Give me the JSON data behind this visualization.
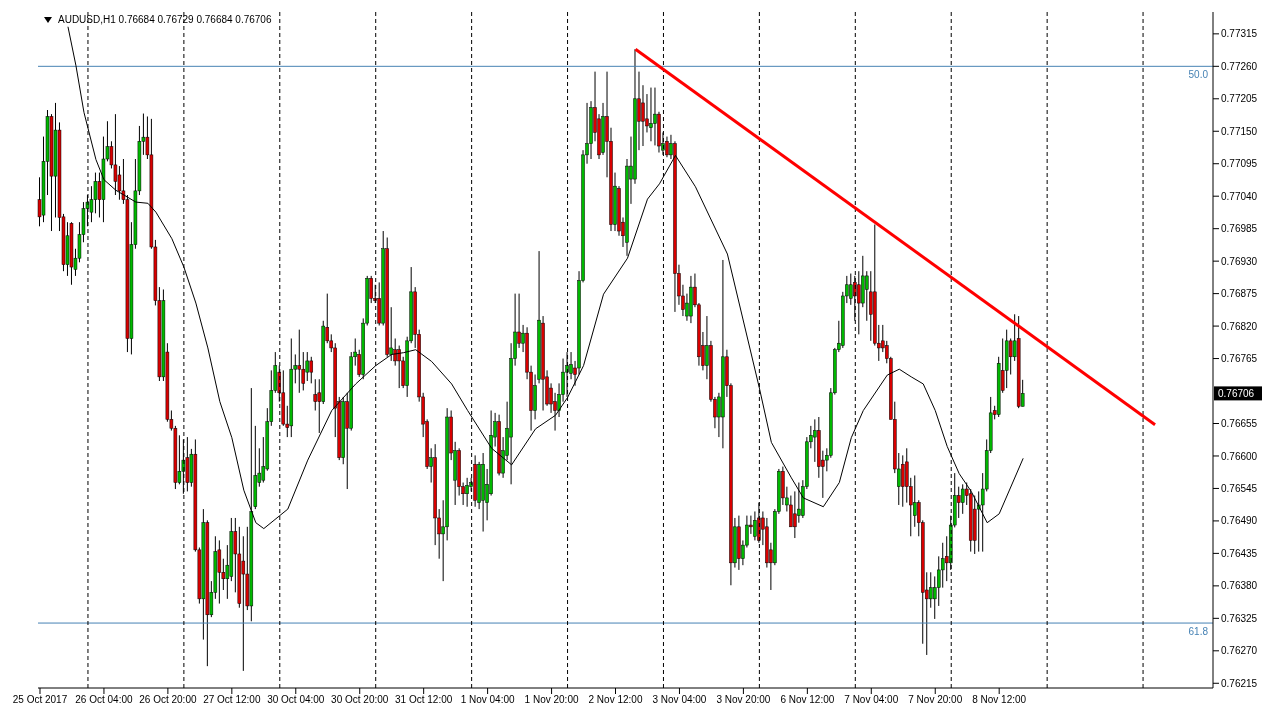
{
  "chart_data": {
    "type": "candlestick",
    "title": "AUDUSD,H1 0.76684 0.76729 0.76684 0.76706",
    "categories": [
      "25 Oct 2017",
      null,
      null,
      null,
      null,
      null,
      null,
      null,
      null,
      null,
      null,
      null,
      null,
      null,
      null,
      null,
      "26 Oct 04:00",
      null,
      null,
      null,
      null,
      null,
      null,
      null,
      null,
      null,
      null,
      null,
      null,
      null,
      null,
      null,
      "26 Oct 20:00",
      null,
      null,
      null,
      null,
      null,
      null,
      null,
      null,
      null,
      null,
      null,
      null,
      null,
      null,
      null,
      "27 Oct 12:00",
      null,
      null,
      null,
      null,
      null,
      null,
      null,
      null,
      null,
      null,
      null,
      null,
      null,
      null,
      null,
      "30 Oct 04:00",
      null,
      null,
      null,
      null,
      null,
      null,
      null,
      null,
      null,
      null,
      null,
      null,
      null,
      null,
      null,
      "30 Oct 20:00",
      null,
      null,
      null,
      null,
      null,
      null,
      null,
      null,
      null,
      null,
      null,
      null,
      null,
      null,
      null,
      "31 Oct 12:00",
      null,
      null,
      null,
      null,
      null,
      null,
      null,
      null,
      null,
      null,
      null,
      null,
      null,
      null,
      null,
      "1 Nov 04:00",
      null,
      null,
      null,
      null,
      null,
      null,
      null,
      null,
      null,
      null,
      null,
      null,
      null,
      null,
      null,
      "1 Nov 20:00",
      null,
      null,
      null,
      null,
      null,
      null,
      null,
      null,
      null,
      null,
      null,
      null,
      null,
      null,
      null,
      "2 Nov 12:00",
      null,
      null,
      null,
      null,
      null,
      null,
      null,
      null,
      null,
      null,
      null,
      null,
      null,
      null,
      null,
      "3 Nov 04:00",
      null,
      null,
      null,
      null,
      null,
      null,
      null,
      null,
      null,
      null,
      null,
      null,
      null,
      null,
      null,
      "3 Nov 20:00",
      null,
      null,
      null,
      null,
      null,
      null,
      null,
      null,
      null,
      null,
      null,
      null,
      null,
      null,
      null,
      "6 Nov 12:00",
      null,
      null,
      null,
      null,
      null,
      null,
      null,
      null,
      null,
      null,
      null,
      null,
      null,
      null,
      null,
      "7 Nov 04:00",
      null,
      null,
      null,
      null,
      null,
      null,
      null,
      null,
      null,
      null,
      null,
      null,
      null,
      null,
      null,
      "7 Nov 20:00",
      null,
      null,
      null,
      null,
      null,
      null,
      null,
      null,
      null,
      null,
      null,
      null,
      null,
      null,
      null,
      "8 Nov 12:00",
      null,
      null,
      null,
      null,
      null,
      null,
      null,
      null,
      null,
      null,
      null,
      null,
      null,
      null,
      null,
      null,
      null,
      null,
      null,
      null,
      null,
      null,
      null,
      null,
      null,
      null,
      null,
      null,
      null,
      null,
      null,
      null,
      null,
      null,
      null,
      null,
      null,
      null,
      null,
      null,
      null,
      null,
      null,
      null,
      null,
      null,
      null,
      null,
      null,
      null,
      null,
      null,
      null
    ],
    "ohlc": [
      [
        0.77034,
        0.77072,
        0.76989,
        0.77005
      ],
      [
        0.77008,
        0.77141,
        0.76996,
        0.77099
      ],
      [
        0.77099,
        0.77186,
        0.77042,
        0.77175
      ],
      [
        0.77175,
        0.77179,
        0.76981,
        0.77074
      ],
      [
        0.77074,
        0.77198,
        0.77004,
        0.77152
      ],
      [
        0.77152,
        0.77165,
        0.76981,
        0.77004
      ],
      [
        0.77005,
        0.7701,
        0.76913,
        0.76924
      ],
      [
        0.76924,
        0.76996,
        0.76905,
        0.76973
      ],
      [
        0.76994,
        0.76996,
        0.7689,
        0.7692
      ],
      [
        0.76916,
        0.76951,
        0.76905,
        0.76935
      ],
      [
        0.76935,
        0.76996,
        0.76928,
        0.76975
      ],
      [
        0.76975,
        0.7703,
        0.76962,
        0.77019
      ],
      [
        0.77019,
        0.77042,
        0.76989,
        0.7703
      ],
      [
        0.77013,
        0.77057,
        0.76996,
        0.77034
      ],
      [
        0.77034,
        0.7708,
        0.77011,
        0.77065
      ],
      [
        0.77065,
        0.7708,
        0.77004,
        0.77034
      ],
      [
        0.77034,
        0.77141,
        0.76996,
        0.77103
      ],
      [
        0.77103,
        0.77167,
        0.77099,
        0.77124
      ],
      [
        0.77124,
        0.77133,
        0.77087,
        0.77093
      ],
      [
        0.77093,
        0.77179,
        0.77042,
        0.77065
      ],
      [
        0.77076,
        0.77091,
        0.77034,
        0.77049
      ],
      [
        0.77049,
        0.77103,
        0.77027,
        0.77034
      ],
      [
        0.77034,
        0.77042,
        0.76776,
        0.76799
      ],
      [
        0.76799,
        0.76996,
        0.76772,
        0.76958
      ],
      [
        0.76958,
        0.77103,
        0.76951,
        0.77049
      ],
      [
        0.77049,
        0.77159,
        0.77042,
        0.77133
      ],
      [
        0.77133,
        0.7718,
        0.7711,
        0.7714
      ],
      [
        0.7714,
        0.77175,
        0.77103,
        0.7711
      ],
      [
        0.7711,
        0.77171,
        0.76951,
        0.76954
      ],
      [
        0.76954,
        0.76966,
        0.76855,
        0.76863
      ],
      [
        0.76863,
        0.76886,
        0.76727,
        0.76734
      ],
      [
        0.76734,
        0.76882,
        0.76727,
        0.76863
      ],
      [
        0.76776,
        0.76791,
        0.76658,
        0.76662
      ],
      [
        0.76662,
        0.76677,
        0.76643,
        0.76647
      ],
      [
        0.76647,
        0.76651,
        0.76544,
        0.76555
      ],
      [
        0.76555,
        0.76635,
        0.76552,
        0.76574
      ],
      [
        0.76574,
        0.76628,
        0.76536,
        0.76593
      ],
      [
        0.76597,
        0.76632,
        0.7654,
        0.76555
      ],
      [
        0.76555,
        0.76612,
        0.76548,
        0.76603
      ],
      [
        0.76603,
        0.76628,
        0.76438,
        0.76441
      ],
      [
        0.76441,
        0.76445,
        0.7635,
        0.76358
      ],
      [
        0.76358,
        0.7651,
        0.76289,
        0.76487
      ],
      [
        0.76487,
        0.76491,
        0.76244,
        0.76331
      ],
      [
        0.76331,
        0.76388,
        0.76327,
        0.76369
      ],
      [
        0.76369,
        0.76464,
        0.76358,
        0.76438
      ],
      [
        0.76441,
        0.76457,
        0.7635,
        0.76403
      ],
      [
        0.76403,
        0.76426,
        0.76373,
        0.76392
      ],
      [
        0.76392,
        0.76449,
        0.76358,
        0.76415
      ],
      [
        0.76396,
        0.76495,
        0.76388,
        0.76472
      ],
      [
        0.76472,
        0.76495,
        0.76369,
        0.76434
      ],
      [
        0.76434,
        0.7648,
        0.76343,
        0.7635
      ],
      [
        0.76422,
        0.76464,
        0.76236,
        0.764
      ],
      [
        0.764,
        0.7648,
        0.76339,
        0.76346
      ],
      [
        0.76346,
        0.76715,
        0.7632,
        0.76506
      ],
      [
        0.76514,
        0.76651,
        0.7651,
        0.76567
      ],
      [
        0.76555,
        0.76613,
        0.76548,
        0.76571
      ],
      [
        0.76559,
        0.76632,
        0.76555,
        0.76582
      ],
      [
        0.76578,
        0.76681,
        0.76575,
        0.76658
      ],
      [
        0.76658,
        0.76745,
        0.76651,
        0.76711
      ],
      [
        0.76711,
        0.76776,
        0.76707,
        0.76753
      ],
      [
        0.76742,
        0.76753,
        0.76692,
        0.76707
      ],
      [
        0.76707,
        0.76745,
        0.76651,
        0.76654
      ],
      [
        0.76654,
        0.76685,
        0.76632,
        0.76648
      ],
      [
        0.76651,
        0.76799,
        0.76632,
        0.76747
      ],
      [
        0.76747,
        0.76772,
        0.76723,
        0.76753
      ],
      [
        0.76753,
        0.76814,
        0.76707,
        0.76747
      ],
      [
        0.76747,
        0.76776,
        0.76711,
        0.76723
      ],
      [
        0.76742,
        0.76776,
        0.76727,
        0.76761
      ],
      [
        0.76761,
        0.76768,
        0.76723,
        0.76742
      ],
      [
        0.76704,
        0.7673,
        0.76677,
        0.76692
      ],
      [
        0.76707,
        0.7673,
        0.76639,
        0.76692
      ],
      [
        0.76692,
        0.76829,
        0.76688,
        0.7682
      ],
      [
        0.76818,
        0.76875,
        0.76791,
        0.76795
      ],
      [
        0.76795,
        0.76806,
        0.76776,
        0.76783
      ],
      [
        0.76783,
        0.76791,
        0.76632,
        0.76681
      ],
      [
        0.76692,
        0.767,
        0.76593,
        0.76597
      ],
      [
        0.76597,
        0.767,
        0.76586,
        0.76692
      ],
      [
        0.76692,
        0.76707,
        0.76544,
        0.76647
      ],
      [
        0.76647,
        0.76776,
        0.76643,
        0.76768
      ],
      [
        0.76768,
        0.76799,
        0.76753,
        0.76776
      ],
      [
        0.76772,
        0.7678,
        0.76734,
        0.76738
      ],
      [
        0.76738,
        0.76833,
        0.7673,
        0.76825
      ],
      [
        0.76825,
        0.76905,
        0.76821,
        0.76901
      ],
      [
        0.76901,
        0.76905,
        0.76859,
        0.76867
      ],
      [
        0.76867,
        0.7689,
        0.76859,
        0.76863
      ],
      [
        0.76867,
        0.76894,
        0.76821,
        0.76825
      ],
      [
        0.76825,
        0.76981,
        0.76821,
        0.76951
      ],
      [
        0.76951,
        0.7697,
        0.76768,
        0.76772
      ],
      [
        0.76772,
        0.76852,
        0.76761,
        0.76783
      ],
      [
        0.7678,
        0.76799,
        0.76753,
        0.76761
      ],
      [
        0.7678,
        0.76787,
        0.76715,
        0.76761
      ],
      [
        0.76761,
        0.76768,
        0.76715,
        0.76719
      ],
      [
        0.76719,
        0.76802,
        0.767,
        0.76795
      ],
      [
        0.76795,
        0.7692,
        0.76791,
        0.76878
      ],
      [
        0.76878,
        0.76886,
        0.76783,
        0.76806
      ],
      [
        0.76806,
        0.76814,
        0.76692,
        0.767
      ],
      [
        0.767,
        0.76707,
        0.76632,
        0.76654
      ],
      [
        0.76658,
        0.76662,
        0.76578,
        0.76582
      ],
      [
        0.76582,
        0.76613,
        0.76555,
        0.76597
      ],
      [
        0.76597,
        0.7662,
        0.76449,
        0.76495
      ],
      [
        0.76495,
        0.7651,
        0.76426,
        0.76468
      ],
      [
        0.76468,
        0.76525,
        0.76388,
        0.7648
      ],
      [
        0.7648,
        0.76681,
        0.76457,
        0.76666
      ],
      [
        0.76666,
        0.76677,
        0.76593,
        0.76605
      ],
      [
        0.76559,
        0.76624,
        0.76517,
        0.76609
      ],
      [
        0.76609,
        0.76613,
        0.76533,
        0.76548
      ],
      [
        0.76548,
        0.76555,
        0.76517,
        0.76536
      ],
      [
        0.76536,
        0.76563,
        0.76514,
        0.7655
      ],
      [
        0.76548,
        0.76563,
        0.7654,
        0.76555
      ],
      [
        0.76586,
        0.76601,
        0.76514,
        0.76525
      ],
      [
        0.76521,
        0.7659,
        0.7651,
        0.76586
      ],
      [
        0.76525,
        0.76605,
        0.76472,
        0.76586
      ],
      [
        0.76521,
        0.76578,
        0.76491,
        0.76552
      ],
      [
        0.76536,
        0.76677,
        0.76533,
        0.76635
      ],
      [
        0.76632,
        0.76673,
        0.76616,
        0.76658
      ],
      [
        0.76658,
        0.7667,
        0.76567,
        0.76571
      ],
      [
        0.76571,
        0.76632,
        0.76563,
        0.76609
      ],
      [
        0.76601,
        0.76692,
        0.76593,
        0.76647
      ],
      [
        0.76632,
        0.76791,
        0.76552,
        0.76765
      ],
      [
        0.76765,
        0.76875,
        0.76753,
        0.7681
      ],
      [
        0.7681,
        0.76875,
        0.76783,
        0.76791
      ],
      [
        0.76791,
        0.76822,
        0.76776,
        0.76808
      ],
      [
        0.76808,
        0.76818,
        0.7673,
        0.76742
      ],
      [
        0.76742,
        0.76753,
        0.76643,
        0.76677
      ],
      [
        0.76677,
        0.76738,
        0.76662,
        0.76719
      ],
      [
        0.7673,
        0.76947,
        0.76723,
        0.7683
      ],
      [
        0.76825,
        0.76837,
        0.76677,
        0.7673
      ],
      [
        0.76734,
        0.76745,
        0.76685,
        0.76688
      ],
      [
        0.76715,
        0.76723,
        0.76673,
        0.76688
      ],
      [
        0.76692,
        0.76707,
        0.76643,
        0.76677
      ],
      [
        0.76677,
        0.76723,
        0.76666,
        0.76704
      ],
      [
        0.76704,
        0.76765,
        0.76692,
        0.76742
      ],
      [
        0.76742,
        0.76776,
        0.767,
        0.76753
      ],
      [
        0.7674,
        0.76776,
        0.7673,
        0.76755
      ],
      [
        0.76749,
        0.76761,
        0.76719,
        0.76738
      ],
      [
        0.76749,
        0.76913,
        0.76738,
        0.76897
      ],
      [
        0.76897,
        0.77118,
        0.76894,
        0.7711
      ],
      [
        0.7711,
        0.77198,
        0.77095,
        0.77129
      ],
      [
        0.77129,
        0.77201,
        0.77103,
        0.7719
      ],
      [
        0.7719,
        0.77251,
        0.77133,
        0.77148
      ],
      [
        0.77171,
        0.77179,
        0.77103,
        0.7711
      ],
      [
        0.77114,
        0.77198,
        0.7711,
        0.77175
      ],
      [
        0.77175,
        0.77251,
        0.77072,
        0.77133
      ],
      [
        0.77133,
        0.77156,
        0.76981,
        0.76992
      ],
      [
        0.76992,
        0.7708,
        0.76981,
        0.77057
      ],
      [
        0.77053,
        0.77057,
        0.76973,
        0.76981
      ],
      [
        0.76996,
        0.77004,
        0.76954,
        0.76973
      ],
      [
        0.76962,
        0.77103,
        0.76939,
        0.77091
      ],
      [
        0.77069,
        0.77141,
        0.77027,
        0.77091
      ],
      [
        0.77069,
        0.77289,
        0.77061,
        0.77205
      ],
      [
        0.77205,
        0.77251,
        0.77118,
        0.77167
      ],
      [
        0.77198,
        0.77228,
        0.77125,
        0.77167
      ],
      [
        0.77171,
        0.77213,
        0.77148,
        0.77159
      ],
      [
        0.77156,
        0.77224,
        0.77133,
        0.77163
      ],
      [
        0.77163,
        0.77224,
        0.77126,
        0.77179
      ],
      [
        0.77179,
        0.77183,
        0.77114,
        0.77125
      ],
      [
        0.77118,
        0.77148,
        0.7711,
        0.77129
      ],
      [
        0.77133,
        0.77141,
        0.77106,
        0.7711
      ],
      [
        0.7711,
        0.77144,
        0.77103,
        0.77129
      ],
      [
        0.77129,
        0.77133,
        0.76844,
        0.76909
      ],
      [
        0.76909,
        0.76924,
        0.76856,
        0.76871
      ],
      [
        0.76871,
        0.7689,
        0.76837,
        0.76848
      ],
      [
        0.76837,
        0.76875,
        0.76829,
        0.76859
      ],
      [
        0.76837,
        0.76905,
        0.76825,
        0.76886
      ],
      [
        0.76886,
        0.76909,
        0.76852,
        0.76856
      ],
      [
        0.76856,
        0.76859,
        0.76753,
        0.76768
      ],
      [
        0.76787,
        0.7681,
        0.76745,
        0.76753
      ],
      [
        0.76753,
        0.76837,
        0.7673,
        0.76787
      ],
      [
        0.76787,
        0.76795,
        0.76692,
        0.76696
      ],
      [
        0.76696,
        0.767,
        0.76647,
        0.76666
      ],
      [
        0.76666,
        0.76707,
        0.76632,
        0.767
      ],
      [
        0.76666,
        0.76932,
        0.76613,
        0.76768
      ],
      [
        0.76768,
        0.7678,
        0.767,
        0.76719
      ],
      [
        0.76719,
        0.76723,
        0.76381,
        0.76419
      ],
      [
        0.76419,
        0.76495,
        0.76411,
        0.7648
      ],
      [
        0.7648,
        0.76499,
        0.76407,
        0.76426
      ],
      [
        0.76426,
        0.76457,
        0.76415,
        0.76449
      ],
      [
        0.76449,
        0.76499,
        0.76445,
        0.76483
      ],
      [
        0.76483,
        0.76499,
        0.76468,
        0.7648
      ],
      [
        0.76464,
        0.76506,
        0.76457,
        0.76491
      ],
      [
        0.76495,
        0.76521,
        0.76453,
        0.76457
      ],
      [
        0.76495,
        0.76506,
        0.76449,
        0.76476
      ],
      [
        0.7648,
        0.76495,
        0.76411,
        0.76419
      ],
      [
        0.76441,
        0.76453,
        0.76373,
        0.76419
      ],
      [
        0.76419,
        0.7651,
        0.76415,
        0.76506
      ],
      [
        0.76506,
        0.76578,
        0.76502,
        0.76574
      ],
      [
        0.76574,
        0.76582,
        0.76517,
        0.76529
      ],
      [
        0.76517,
        0.76548,
        0.76506,
        0.76529
      ],
      [
        0.76517,
        0.76533,
        0.7648,
        0.7648
      ],
      [
        0.76502,
        0.7654,
        0.76461,
        0.7648
      ],
      [
        0.76499,
        0.76555,
        0.76487,
        0.7651
      ],
      [
        0.76499,
        0.76559,
        0.76495,
        0.76548
      ],
      [
        0.76548,
        0.76632,
        0.76544,
        0.76624
      ],
      [
        0.76624,
        0.76651,
        0.76613,
        0.76635
      ],
      [
        0.76632,
        0.76662,
        0.7659,
        0.76643
      ],
      [
        0.76643,
        0.76666,
        0.76563,
        0.76582
      ],
      [
        0.76593,
        0.76609,
        0.76529,
        0.76582
      ],
      [
        0.76593,
        0.76613,
        0.76574,
        0.76601
      ],
      [
        0.76601,
        0.76715,
        0.76597,
        0.76707
      ],
      [
        0.76707,
        0.76783,
        0.76704,
        0.7678
      ],
      [
        0.7678,
        0.76829,
        0.76776,
        0.76791
      ],
      [
        0.76787,
        0.76878,
        0.76783,
        0.76871
      ],
      [
        0.76871,
        0.76905,
        0.76859,
        0.7689
      ],
      [
        0.76867,
        0.76909,
        0.76856,
        0.7689
      ],
      [
        0.76894,
        0.76905,
        0.76829,
        0.76871
      ],
      [
        0.7689,
        0.76913,
        0.76806,
        0.76859
      ],
      [
        0.76859,
        0.76939,
        0.76852,
        0.76905
      ],
      [
        0.76882,
        0.76913,
        0.76829,
        0.76905
      ],
      [
        0.76878,
        0.76913,
        0.76795,
        0.7684
      ],
      [
        0.76878,
        0.76992,
        0.76787,
        0.76791
      ],
      [
        0.76791,
        0.76822,
        0.76761,
        0.76783
      ],
      [
        0.76795,
        0.76822,
        0.76776,
        0.76783
      ],
      [
        0.76787,
        0.76795,
        0.76757,
        0.76765
      ],
      [
        0.76765,
        0.76768,
        0.76662,
        0.76662
      ],
      [
        0.76662,
        0.76692,
        0.76571,
        0.76578
      ],
      [
        0.76548,
        0.76605,
        0.76517,
        0.76578
      ],
      [
        0.76586,
        0.76601,
        0.76514,
        0.76548
      ],
      [
        0.7659,
        0.76613,
        0.76521,
        0.76548
      ],
      [
        0.76548,
        0.76563,
        0.76464,
        0.76517
      ],
      [
        0.76499,
        0.76567,
        0.7648,
        0.76521
      ],
      [
        0.76521,
        0.76525,
        0.76464,
        0.76487
      ],
      [
        0.76487,
        0.76491,
        0.76282,
        0.76369
      ],
      [
        0.76373,
        0.76403,
        0.76263,
        0.76358
      ],
      [
        0.76358,
        0.76403,
        0.76343,
        0.76377
      ],
      [
        0.76358,
        0.76396,
        0.76324,
        0.76377
      ],
      [
        0.76377,
        0.7643,
        0.76346,
        0.76407
      ],
      [
        0.76407,
        0.76453,
        0.76377,
        0.76426
      ],
      [
        0.7643,
        0.76464,
        0.76388,
        0.76419
      ],
      [
        0.76419,
        0.76499,
        0.76407,
        0.76483
      ],
      [
        0.76483,
        0.76571,
        0.76479,
        0.76533
      ],
      [
        0.76533,
        0.76548,
        0.76495,
        0.76521
      ],
      [
        0.76521,
        0.76552,
        0.76502,
        0.76544
      ],
      [
        0.76544,
        0.76555,
        0.76517,
        0.76533
      ],
      [
        0.76536,
        0.76544,
        0.76438,
        0.76457
      ],
      [
        0.7651,
        0.76533,
        0.76434,
        0.76457
      ],
      [
        0.7651,
        0.7654,
        0.76438,
        0.76517
      ],
      [
        0.76517,
        0.76571,
        0.76438,
        0.76544
      ],
      [
        0.76544,
        0.76628,
        0.7654,
        0.76609
      ],
      [
        0.76609,
        0.767,
        0.76605,
        0.76673
      ],
      [
        0.76677,
        0.76685,
        0.76662,
        0.7667
      ],
      [
        0.7667,
        0.76768,
        0.76666,
        0.76757
      ],
      [
        0.76745,
        0.76799,
        0.76707,
        0.76711
      ],
      [
        0.76745,
        0.76814,
        0.76715,
        0.76795
      ],
      [
        0.76795,
        0.76799,
        0.76738,
        0.76768
      ],
      [
        0.76768,
        0.7684,
        0.76761,
        0.76795
      ],
      [
        0.76799,
        0.76837,
        0.76681,
        0.76684
      ],
      [
        0.76684,
        0.76729,
        0.76684,
        0.76706
      ],
      null,
      null,
      null,
      null,
      null,
      null,
      null,
      null,
      null,
      null,
      null,
      null,
      null,
      null,
      null,
      null,
      null,
      null,
      null,
      null,
      null,
      null,
      null,
      null,
      null,
      null,
      null,
      null,
      null,
      null,
      null,
      null,
      null,
      null,
      null,
      null,
      null,
      null,
      null,
      null,
      null,
      null,
      null,
      null,
      null,
      null,
      null
    ],
    "series": [
      {
        "type": "line",
        "color": "#000000",
        "values": [
          null,
          null,
          null,
          null,
          null,
          null,
          null,
          0.77327,
          null,
          0.77261,
          null,
          0.77182,
          null,
          null,
          0.77102,
          null,
          0.77068,
          null,
          null,
          0.7705,
          null,
          null,
          null,
          null,
          0.7703,
          null,
          null,
          0.77028,
          null,
          0.77013,
          null,
          null,
          null,
          0.76968,
          null,
          null,
          0.7692,
          null,
          null,
          0.76859,
          null,
          null,
          0.76783,
          null,
          null,
          0.76692,
          null,
          null,
          0.76631,
          null,
          null,
          0.76542,
          null,
          null,
          0.76487,
          null,
          0.76477,
          null,
          null,
          null,
          0.76499,
          null,
          0.7651,
          null,
          null,
          null,
          null,
          0.76593,
          null,
          null,
          null,
          null,
          null,
          0.76677,
          null,
          null,
          null,
          null,
          null,
          0.76722,
          null,
          null,
          null,
          null,
          0.76753,
          null,
          null,
          null,
          0.76772,
          null,
          null,
          0.76775,
          null,
          null,
          0.7678,
          null,
          null,
          null,
          0.7676,
          null,
          null,
          null,
          null,
          0.76722,
          null,
          null,
          null,
          0.76677,
          null,
          null,
          null,
          null,
          null,
          0.76613,
          null,
          null,
          null,
          null,
          0.76585,
          null,
          null,
          null,
          null,
          null,
          0.76646,
          null,
          null,
          null,
          null,
          0.76669,
          null,
          null,
          0.76699,
          null,
          null,
          null,
          0.76753,
          null,
          null,
          null,
          null,
          0.76874,
          null,
          null,
          null,
          null,
          null,
          0.76935,
          null,
          null,
          null,
          null,
          0.77035,
          null,
          null,
          0.77061,
          null,
          null,
          null,
          0.77109,
          null,
          null,
          null,
          null,
          0.77056,
          null,
          null,
          null,
          null,
          null,
          null,
          null,
          0.76942,
          null,
          null,
          null,
          null,
          null,
          null,
          null,
          0.76715,
          null,
          null,
          0.76623,
          null,
          null,
          null,
          null,
          0.76563,
          null,
          null,
          0.76529,
          null,
          null,
          null,
          null,
          0.76514,
          null,
          null,
          null,
          0.76555,
          null,
          null,
          0.76631,
          null,
          null,
          0.76677,
          null,
          null,
          null,
          null,
          null,
          0.76737,
          null,
          null,
          0.76747,
          null,
          null,
          0.76734,
          null,
          null,
          0.76722,
          null,
          null,
          0.76677,
          null,
          null,
          0.76616,
          null,
          null,
          0.7657,
          null,
          null,
          0.7654,
          null,
          null,
          null,
          0.76487,
          null,
          null,
          0.76502,
          null,
          null,
          null,
          null,
          null,
          0.76596,
          null,
          null,
          null,
          null,
          null,
          null,
          null,
          null,
          null,
          null,
          null,
          null,
          null,
          null,
          null,
          null,
          null,
          null,
          null,
          null,
          null,
          null,
          null,
          null,
          null,
          null,
          null,
          null,
          null,
          null,
          null,
          null,
          null,
          null,
          null,
          null,
          null,
          null,
          null,
          null,
          null,
          null,
          null,
          null,
          null,
          null,
          null
        ]
      },
      {
        "type": "line",
        "color": "#ff0000",
        "values": [
          null,
          null,
          null,
          null,
          null,
          null,
          null,
          null,
          null,
          null,
          null,
          null,
          null,
          null,
          null,
          null,
          null,
          null,
          null,
          null,
          null,
          null,
          null,
          null,
          null,
          null,
          null,
          null,
          null,
          null,
          null,
          null,
          null,
          null,
          null,
          null,
          null,
          null,
          null,
          null,
          null,
          null,
          null,
          null,
          null,
          null,
          null,
          null,
          null,
          null,
          null,
          null,
          null,
          null,
          null,
          null,
          null,
          null,
          null,
          null,
          null,
          null,
          null,
          null,
          null,
          null,
          null,
          null,
          null,
          null,
          null,
          null,
          null,
          null,
          null,
          null,
          null,
          null,
          null,
          null,
          null,
          null,
          null,
          null,
          null,
          null,
          null,
          null,
          null,
          null,
          null,
          null,
          null,
          null,
          null,
          null,
          null,
          null,
          null,
          null,
          null,
          null,
          null,
          null,
          null,
          null,
          null,
          null,
          null,
          null,
          null,
          null,
          null,
          null,
          null,
          null,
          null,
          null,
          null,
          null,
          null,
          null,
          null,
          null,
          null,
          null,
          null,
          null,
          null,
          null,
          null,
          null,
          null,
          null,
          null,
          null,
          null,
          null,
          null,
          null,
          null,
          null,
          null,
          null,
          null,
          null,
          null,
          null,
          null,
          0.77289,
          null,
          null,
          null,
          null,
          null,
          null,
          null,
          null,
          null,
          null,
          null,
          null,
          null,
          null,
          null,
          null,
          null,
          null,
          null,
          null,
          null,
          null,
          null,
          null,
          null,
          null,
          null,
          null,
          null,
          null,
          null,
          null,
          null,
          null,
          null,
          null,
          null,
          null,
          null,
          null,
          null,
          null,
          null,
          null,
          null,
          null,
          null,
          null,
          null,
          null,
          null,
          null,
          null,
          null,
          null,
          null,
          null,
          null,
          null,
          null,
          null,
          null,
          null,
          null,
          null,
          null,
          null,
          null,
          null,
          null,
          null,
          null,
          null,
          null,
          null,
          null,
          null,
          null,
          null,
          null,
          null,
          null,
          null,
          null,
          null,
          null,
          null,
          null,
          null,
          null,
          null,
          null,
          null,
          null,
          null,
          null,
          null,
          null,
          null,
          null,
          null,
          null,
          null,
          null,
          null,
          null,
          null,
          null,
          null,
          null,
          null,
          null,
          null,
          null,
          null,
          null,
          null,
          null,
          null,
          null,
          null,
          null,
          null,
          null,
          null,
          null,
          null,
          null,
          null,
          0.76653,
          null,
          null,
          null,
          null,
          null,
          null,
          null,
          null,
          null,
          null,
          null,
          null,
          null,
          null
        ]
      }
    ],
    "ylim": [
      0.76207,
      0.77352
    ],
    "yticks": [
      0.77315,
      {
        "value": 0.7726,
        "label": "0.77260"
      },
      0.77205,
      {
        "value": 0.7715,
        "label": "0.77150"
      },
      0.77095,
      {
        "value": 0.7704,
        "label": "0.77040"
      },
      0.76985,
      {
        "value": 0.7693,
        "label": "0.76930"
      },
      0.76875,
      {
        "value": 0.7682,
        "label": "0.76820"
      },
      0.76765,
      0.76655,
      {
        "value": 0.766,
        "label": "0.76600"
      },
      0.76545,
      {
        "value": 0.7649,
        "label": "0.76490"
      },
      0.76435,
      {
        "value": 0.7638,
        "label": "0.76380"
      },
      0.76325,
      {
        "value": 0.7627,
        "label": "0.76270"
      },
      0.76215
    ],
    "ref_lines": [
      {
        "axis": "y",
        "value": 0.7726,
        "color": "#4682b4"
      },
      {
        "axis": "y",
        "value": 0.76317,
        "color": "#4682b4"
      }
    ],
    "annotations": [
      {
        "text": "50.0",
        "y": 0.7726
      },
      {
        "text": "61.8",
        "y": 0.76317
      },
      "0.76706"
    ]
  }
}
